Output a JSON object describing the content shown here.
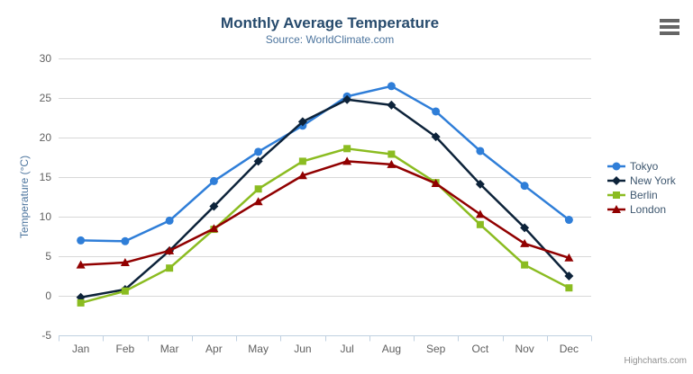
{
  "header": {
    "title": "Monthly Average Temperature",
    "subtitle": "Source: WorldClimate.com"
  },
  "toolbar": {
    "menu_icon": "hamburger-menu-icon"
  },
  "credit": "Highcharts.com",
  "colors": {
    "title": "#274b6d",
    "subtitle": "#4d759e",
    "axis_label": "#606060",
    "axis_title": "#4d759e",
    "grid": "#d8d8d8",
    "axis_line": "#c0d0e0",
    "legend_text": "#3e576f",
    "credit": "#909090",
    "menu_icon": "#666666"
  },
  "chart_data": {
    "type": "line",
    "title": "Monthly Average Temperature",
    "subtitle": "Source: WorldClimate.com",
    "xlabel": "",
    "ylabel": "Temperature (°C)",
    "ylim": [
      -5,
      30
    ],
    "ytick_step": 5,
    "grid": true,
    "legend_position": "right",
    "categories": [
      "Jan",
      "Feb",
      "Mar",
      "Apr",
      "May",
      "Jun",
      "Jul",
      "Aug",
      "Sep",
      "Oct",
      "Nov",
      "Dec"
    ],
    "series": [
      {
        "name": "Tokyo",
        "color": "#2f7ed8",
        "marker": "circle",
        "values": [
          7.0,
          6.9,
          9.5,
          14.5,
          18.2,
          21.5,
          25.2,
          26.5,
          23.3,
          18.3,
          13.9,
          9.6
        ]
      },
      {
        "name": "New York",
        "color": "#0d233a",
        "marker": "diamond",
        "values": [
          -0.2,
          0.8,
          5.7,
          11.3,
          17.0,
          22.0,
          24.8,
          24.1,
          20.1,
          14.1,
          8.6,
          2.5
        ]
      },
      {
        "name": "Berlin",
        "color": "#8bbc21",
        "marker": "square",
        "values": [
          -0.9,
          0.6,
          3.5,
          8.4,
          13.5,
          17.0,
          18.6,
          17.9,
          14.3,
          9.0,
          3.9,
          1.0
        ]
      },
      {
        "name": "London",
        "color": "#910000",
        "marker": "triangle",
        "values": [
          3.9,
          4.2,
          5.7,
          8.5,
          11.9,
          15.2,
          17.0,
          16.6,
          14.2,
          10.3,
          6.6,
          4.8
        ]
      }
    ]
  }
}
